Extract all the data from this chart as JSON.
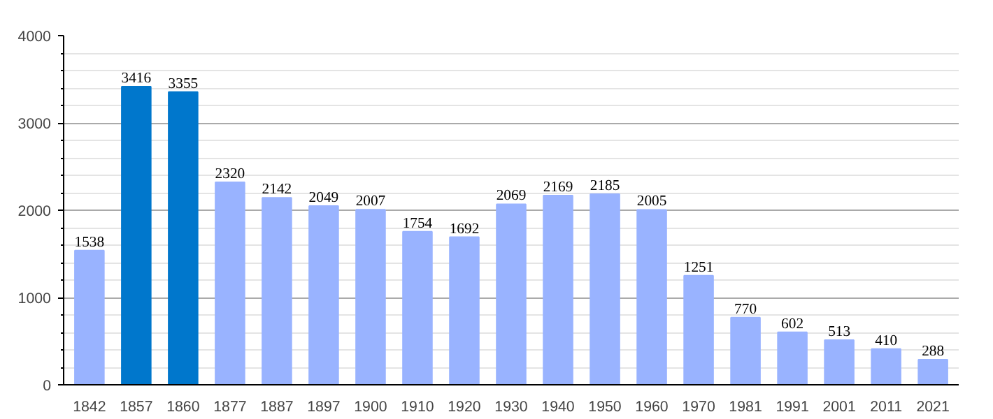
{
  "chart_data": {
    "type": "bar",
    "categories": [
      "1842",
      "1857",
      "1860",
      "1877",
      "1887",
      "1897",
      "1900",
      "1910",
      "1920",
      "1930",
      "1940",
      "1950",
      "1960",
      "1970",
      "1981",
      "1991",
      "2001",
      "2011",
      "2021"
    ],
    "values": [
      1538,
      3416,
      3355,
      2320,
      2142,
      2049,
      2007,
      1754,
      1692,
      2069,
      2169,
      2185,
      2005,
      1251,
      770,
      602,
      513,
      410,
      288
    ],
    "colors": [
      "#99b3ff",
      "#0077cc",
      "#0077cc",
      "#99b3ff",
      "#99b3ff",
      "#99b3ff",
      "#99b3ff",
      "#99b3ff",
      "#99b3ff",
      "#99b3ff",
      "#99b3ff",
      "#99b3ff",
      "#99b3ff",
      "#99b3ff",
      "#99b3ff",
      "#99b3ff",
      "#99b3ff",
      "#99b3ff",
      "#99b3ff"
    ],
    "ylim": [
      0,
      4000
    ],
    "yticks": [
      0,
      1000,
      2000,
      3000,
      4000
    ],
    "grid": "y",
    "data_labels": true
  }
}
